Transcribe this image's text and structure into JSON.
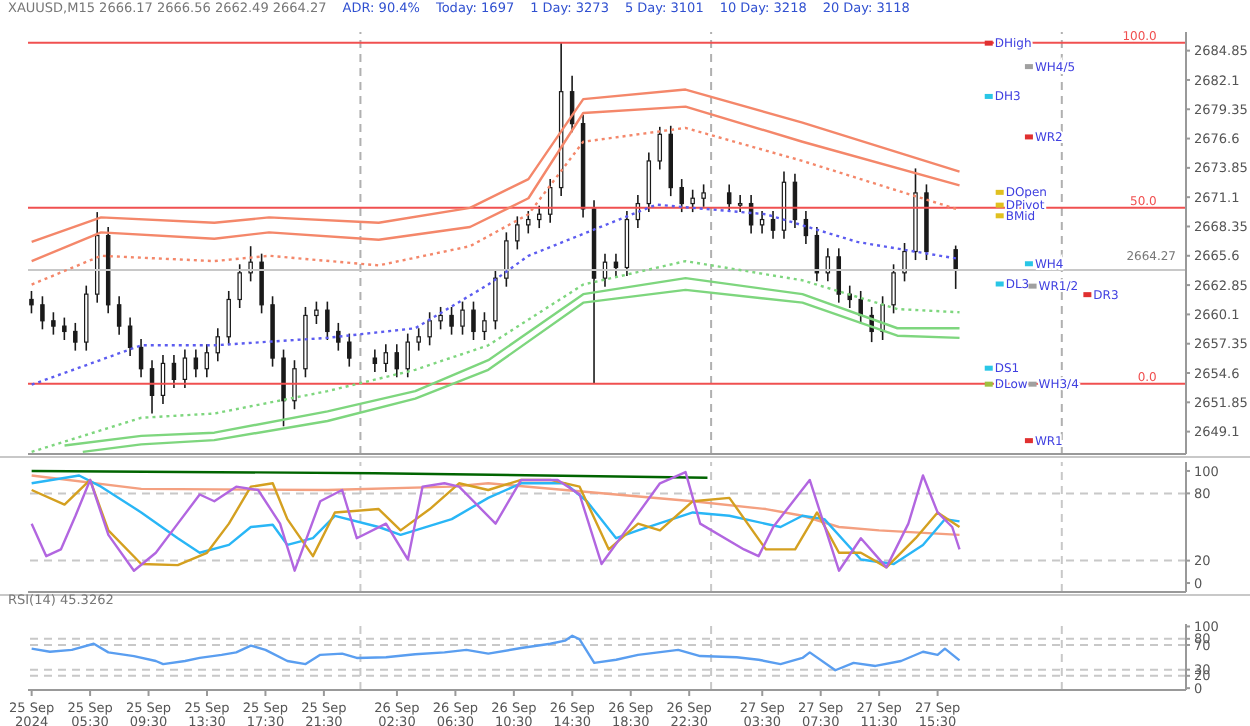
{
  "chart_data": [
    {
      "type": "candlestick",
      "title": "XAUUSD,M15  2666.17 2666.56 2662.49 2664.27",
      "color": "#1a1a1a",
      "annotations": [
        "ADR: 90.4%",
        "Today: 1697",
        "1 Day: 3273",
        "5 Day: 3101",
        "10 Day: 3218",
        "20 Day: 3118",
        {
          "text": "100.0",
          "x": "2024-09-28T06:30",
          "y": 2685.6
        },
        {
          "text": "50.0",
          "x": "2024-09-28T06:30",
          "y": 2670.1
        },
        {
          "text": "0.0",
          "x": "2024-09-28T06:30",
          "y": 2653.6
        }
      ],
      "x": [
        "2024-09-25T01:30",
        "2024-09-25T02:15",
        "2024-09-25T03:00",
        "2024-09-25T03:45",
        "2024-09-25T04:30",
        "2024-09-25T05:15",
        "2024-09-25T06:00",
        "2024-09-25T06:45",
        "2024-09-25T07:30",
        "2024-09-25T08:15",
        "2024-09-25T09:00",
        "2024-09-25T09:45",
        "2024-09-25T10:30",
        "2024-09-25T11:15",
        "2024-09-25T12:00",
        "2024-09-25T12:45",
        "2024-09-25T13:30",
        "2024-09-25T14:15",
        "2024-09-25T15:00",
        "2024-09-25T15:45",
        "2024-09-25T16:30",
        "2024-09-25T17:15",
        "2024-09-25T18:00",
        "2024-09-25T18:45",
        "2024-09-25T19:30",
        "2024-09-25T20:15",
        "2024-09-25T21:00",
        "2024-09-25T21:45",
        "2024-09-25T22:30",
        "2024-09-25T23:15",
        "2024-09-26T01:00",
        "2024-09-26T01:45",
        "2024-09-26T02:30",
        "2024-09-26T03:15",
        "2024-09-26T04:00",
        "2024-09-26T04:45",
        "2024-09-26T05:30",
        "2024-09-26T06:15",
        "2024-09-26T07:00",
        "2024-09-26T07:45",
        "2024-09-26T08:30",
        "2024-09-26T09:15",
        "2024-09-26T10:00",
        "2024-09-26T10:45",
        "2024-09-26T11:30",
        "2024-09-26T12:15",
        "2024-09-26T13:00",
        "2024-09-26T13:45",
        "2024-09-26T14:30",
        "2024-09-26T15:15",
        "2024-09-26T16:00",
        "2024-09-26T16:45",
        "2024-09-26T17:30",
        "2024-09-26T18:15",
        "2024-09-26T19:00",
        "2024-09-26T19:45",
        "2024-09-26T20:30",
        "2024-09-26T21:15",
        "2024-09-26T22:00",
        "2024-09-26T22:45",
        "2024-09-26T23:30",
        "2024-09-27T01:15",
        "2024-09-27T02:00",
        "2024-09-27T02:45",
        "2024-09-27T03:30",
        "2024-09-27T04:15",
        "2024-09-27T05:00",
        "2024-09-27T05:45",
        "2024-09-27T06:30",
        "2024-09-27T07:15",
        "2024-09-27T08:00",
        "2024-09-27T08:45",
        "2024-09-27T09:30",
        "2024-09-27T10:15",
        "2024-09-27T11:00",
        "2024-09-27T11:45",
        "2024-09-27T12:30",
        "2024-09-27T13:15",
        "2024-09-27T14:00",
        "2024-09-27T14:45",
        "2024-09-27T16:45"
      ],
      "ohlc": [
        [
          2661.5,
          2662.3,
          2660.2,
          2661.0
        ],
        [
          2661.0,
          2661.8,
          2658.7,
          2659.5
        ],
        [
          2659.5,
          2660.3,
          2658.2,
          2659.0
        ],
        [
          2659.0,
          2659.8,
          2657.7,
          2658.5
        ],
        [
          2658.5,
          2659.3,
          2656.7,
          2657.5
        ],
        [
          2657.5,
          2662.8,
          2656.7,
          2662.0
        ],
        [
          2662.0,
          2669.7,
          2661.2,
          2667.5
        ],
        [
          2667.5,
          2668.3,
          2660.2,
          2661.0
        ],
        [
          2661.0,
          2661.8,
          2658.2,
          2659.0
        ],
        [
          2659.0,
          2659.8,
          2656.2,
          2657.0
        ],
        [
          2657.0,
          2657.8,
          2654.2,
          2655.0
        ],
        [
          2655.0,
          2655.8,
          2650.8,
          2652.5
        ],
        [
          2652.5,
          2656.3,
          2651.7,
          2655.5
        ],
        [
          2655.5,
          2656.3,
          2653.2,
          2654.0
        ],
        [
          2654.0,
          2656.8,
          2653.2,
          2656.0
        ],
        [
          2656.0,
          2656.8,
          2654.2,
          2655.0
        ],
        [
          2655.0,
          2657.3,
          2654.2,
          2656.5
        ],
        [
          2656.5,
          2658.8,
          2655.7,
          2658.0
        ],
        [
          2658.0,
          2662.3,
          2657.2,
          2661.5
        ],
        [
          2661.5,
          2664.8,
          2660.7,
          2664.0
        ],
        [
          2664.0,
          2666.5,
          2663.2,
          2665.0
        ],
        [
          2665.0,
          2665.8,
          2660.2,
          2661.0
        ],
        [
          2661.0,
          2661.8,
          2655.2,
          2656.0
        ],
        [
          2656.0,
          2656.8,
          2649.6,
          2652.0
        ],
        [
          2652.0,
          2655.8,
          2651.2,
          2655.0
        ],
        [
          2655.0,
          2660.8,
          2654.2,
          2660.0
        ],
        [
          2660.0,
          2661.3,
          2659.2,
          2660.5
        ],
        [
          2660.5,
          2661.3,
          2657.7,
          2658.5
        ],
        [
          2658.5,
          2659.3,
          2656.7,
          2657.5
        ],
        [
          2657.5,
          2658.3,
          2655.2,
          2656.0
        ],
        [
          2656.0,
          2656.8,
          2654.7,
          2655.5
        ],
        [
          2655.5,
          2657.3,
          2654.7,
          2656.5
        ],
        [
          2656.5,
          2657.3,
          2654.2,
          2655.0
        ],
        [
          2655.0,
          2658.3,
          2654.2,
          2657.5
        ],
        [
          2657.5,
          2658.8,
          2656.7,
          2658.0
        ],
        [
          2658.0,
          2660.3,
          2657.2,
          2659.5
        ],
        [
          2659.5,
          2660.8,
          2658.7,
          2660.0
        ],
        [
          2660.0,
          2660.8,
          2658.2,
          2659.0
        ],
        [
          2659.0,
          2661.3,
          2658.2,
          2660.5
        ],
        [
          2660.5,
          2661.3,
          2657.7,
          2658.5
        ],
        [
          2658.5,
          2660.3,
          2657.7,
          2659.5
        ],
        [
          2659.5,
          2664.3,
          2658.7,
          2663.5
        ],
        [
          2663.5,
          2667.8,
          2662.7,
          2667.0
        ],
        [
          2667.0,
          2669.3,
          2666.2,
          2668.5
        ],
        [
          2668.5,
          2669.8,
          2667.7,
          2669.0
        ],
        [
          2669.0,
          2670.3,
          2668.2,
          2669.5
        ],
        [
          2669.5,
          2672.8,
          2668.7,
          2672.0
        ],
        [
          2672.0,
          2685.6,
          2671.2,
          2681.0
        ],
        [
          2681.0,
          2682.5,
          2677.2,
          2678.0
        ],
        [
          2678.0,
          2678.8,
          2669.2,
          2670.0
        ],
        [
          2670.0,
          2670.8,
          2653.6,
          2663.5
        ],
        [
          2663.5,
          2665.8,
          2662.7,
          2665.0
        ],
        [
          2665.0,
          2665.8,
          2663.7,
          2664.5
        ],
        [
          2664.5,
          2669.8,
          2663.7,
          2669.0
        ],
        [
          2669.0,
          2671.3,
          2668.2,
          2670.5
        ],
        [
          2670.5,
          2675.3,
          2669.7,
          2674.5
        ],
        [
          2674.5,
          2677.7,
          2673.7,
          2677.0
        ],
        [
          2677.0,
          2677.8,
          2671.2,
          2672.0
        ],
        [
          2672.0,
          2672.8,
          2669.7,
          2670.5
        ],
        [
          2670.5,
          2671.8,
          2669.7,
          2671.0
        ],
        [
          2671.0,
          2672.3,
          2670.2,
          2671.5
        ],
        [
          2671.5,
          2672.3,
          2669.7,
          2670.5
        ],
        [
          2670.5,
          2671.3,
          2669.7,
          2670.5
        ],
        [
          2670.5,
          2671.3,
          2667.7,
          2668.5
        ],
        [
          2668.5,
          2669.8,
          2667.7,
          2669.0
        ],
        [
          2669.0,
          2669.8,
          2667.2,
          2668.0
        ],
        [
          2668.0,
          2673.5,
          2667.2,
          2672.5
        ],
        [
          2672.5,
          2673.3,
          2668.2,
          2669.0
        ],
        [
          2669.0,
          2669.8,
          2666.7,
          2667.5
        ],
        [
          2667.5,
          2668.3,
          2663.2,
          2664.0
        ],
        [
          2664.0,
          2666.3,
          2663.2,
          2665.5
        ],
        [
          2665.5,
          2666.3,
          2661.2,
          2662.0
        ],
        [
          2662.0,
          2662.8,
          2660.7,
          2661.5
        ],
        [
          2661.5,
          2662.3,
          2659.2,
          2660.0
        ],
        [
          2660.0,
          2660.8,
          2657.5,
          2658.5
        ],
        [
          2658.5,
          2661.8,
          2657.7,
          2661.0
        ],
        [
          2661.0,
          2664.8,
          2660.2,
          2664.0
        ],
        [
          2664.0,
          2666.8,
          2663.2,
          2666.0
        ],
        [
          2666.0,
          2673.8,
          2665.2,
          2671.5
        ],
        [
          2671.5,
          2672.3,
          2665.2,
          2666.0
        ],
        [
          2666.17,
          2666.56,
          2662.49,
          2664.27
        ]
      ],
      "series": [
        {
          "type": "line",
          "color": "#f4876a",
          "line_style": "solid",
          "x": [
            "2024-09-25T01:30",
            "2024-09-25T06:15",
            "2024-09-25T14:00",
            "2024-09-25T17:45",
            "2024-09-26T01:15",
            "2024-09-26T07:30",
            "2024-09-26T11:30",
            "2024-09-26T15:15",
            "2024-09-26T22:15",
            "2024-09-27T06:15",
            "2024-09-27T17:00"
          ],
          "values": [
            2666.9,
            2669.2,
            2668.7,
            2669.2,
            2668.7,
            2670.1,
            2672.8,
            2680.3,
            2681.2,
            2678.1,
            2673.5
          ]
        },
        {
          "type": "line",
          "color": "#f4876a",
          "line_style": "solid",
          "x": [
            "2024-09-25T01:30",
            "2024-09-25T06:15",
            "2024-09-25T14:00",
            "2024-09-25T17:45",
            "2024-09-26T01:15",
            "2024-09-26T07:30",
            "2024-09-26T11:30",
            "2024-09-26T15:15",
            "2024-09-26T22:15",
            "2024-09-27T06:15",
            "2024-09-27T17:00"
          ],
          "values": [
            2665.1,
            2667.8,
            2667.2,
            2667.8,
            2667.1,
            2668.3,
            2671.0,
            2679.0,
            2679.6,
            2676.3,
            2672.2
          ]
        },
        {
          "type": "line",
          "color": "#f4876a",
          "line_style": "dotted",
          "x": [
            "2024-09-25T01:30",
            "2024-09-25T06:15",
            "2024-09-25T14:00",
            "2024-09-25T17:45",
            "2024-09-26T01:15",
            "2024-09-26T07:30",
            "2024-09-26T11:30",
            "2024-09-26T15:15",
            "2024-09-26T22:15",
            "2024-09-27T06:15",
            "2024-09-27T17:00"
          ],
          "values": [
            2662.9,
            2665.6,
            2665.1,
            2665.6,
            2664.7,
            2666.5,
            2669.5,
            2676.3,
            2677.6,
            2674.5,
            2669.9
          ]
        },
        {
          "type": "line",
          "color": "#5c5cf0",
          "line_style": "dotted",
          "x": [
            "2024-09-25T01:30",
            "2024-09-25T09:00",
            "2024-09-25T14:00",
            "2024-09-25T21:45",
            "2024-09-26T03:45",
            "2024-09-26T08:45",
            "2024-09-26T11:30",
            "2024-09-26T20:15",
            "2024-09-27T03:45",
            "2024-09-27T10:00",
            "2024-09-27T17:00"
          ],
          "values": [
            2653.5,
            2657.2,
            2657.2,
            2657.9,
            2658.8,
            2662.9,
            2665.6,
            2670.4,
            2669.5,
            2666.9,
            2665.3
          ]
        },
        {
          "type": "line",
          "color": "#7ed67e",
          "line_style": "dotted",
          "x": [
            "2024-09-25T01:30",
            "2024-09-25T09:00",
            "2024-09-25T14:00",
            "2024-09-25T21:45",
            "2024-09-26T03:45",
            "2024-09-26T08:45",
            "2024-09-26T15:15",
            "2024-09-26T22:15",
            "2024-09-27T06:15",
            "2024-09-27T12:45",
            "2024-09-27T17:00"
          ],
          "values": [
            2647.2,
            2650.4,
            2650.8,
            2652.9,
            2654.9,
            2657.2,
            2662.9,
            2665.1,
            2663.3,
            2660.6,
            2660.3
          ]
        },
        {
          "type": "line",
          "color": "#7ed67e",
          "line_style": "solid",
          "x": [
            "2024-09-25T03:45",
            "2024-09-25T09:00",
            "2024-09-25T14:00",
            "2024-09-25T21:45",
            "2024-09-26T03:45",
            "2024-09-26T08:45",
            "2024-09-26T15:15",
            "2024-09-26T22:15",
            "2024-09-27T06:15",
            "2024-09-27T12:45",
            "2024-09-27T17:00"
          ],
          "values": [
            2647.8,
            2648.7,
            2649.0,
            2651.0,
            2652.9,
            2655.8,
            2662.0,
            2663.5,
            2662.0,
            2658.8,
            2658.8
          ]
        },
        {
          "type": "line",
          "color": "#7ed67e",
          "line_style": "solid",
          "x": [
            "2024-09-25T05:00",
            "2024-09-25T09:00",
            "2024-09-25T14:00",
            "2024-09-25T21:45",
            "2024-09-26T03:45",
            "2024-09-26T08:45",
            "2024-09-26T15:15",
            "2024-09-26T22:15",
            "2024-09-27T06:15",
            "2024-09-27T12:45",
            "2024-09-27T17:00"
          ],
          "values": [
            2647.2,
            2647.9,
            2648.3,
            2650.1,
            2652.2,
            2654.9,
            2661.2,
            2662.4,
            2661.2,
            2658.1,
            2657.9
          ]
        },
        {
          "type": "scatter",
          "marker": "square",
          "name": "DHigh",
          "color": "#e03030",
          "x": [
            "2024-09-27T19:00"
          ],
          "values": [
            2685.6
          ]
        },
        {
          "type": "scatter",
          "marker": "square",
          "name": "WH4/5",
          "color": "#a0a0a0",
          "x": [
            "2024-09-27T21:45"
          ],
          "values": [
            2683.4
          ]
        },
        {
          "type": "scatter",
          "marker": "square",
          "name": "DH3",
          "color": "#29c6e6",
          "x": [
            "2024-09-27T19:00"
          ],
          "values": [
            2680.6
          ]
        },
        {
          "type": "scatter",
          "marker": "square",
          "name": "WR2",
          "color": "#e03030",
          "x": [
            "2024-09-27T21:45"
          ],
          "values": [
            2676.8
          ]
        },
        {
          "type": "scatter",
          "marker": "square",
          "name": "DOpen",
          "color": "#e0c020",
          "x": [
            "2024-09-27T19:45"
          ],
          "values": [
            2671.6
          ]
        },
        {
          "type": "scatter",
          "marker": "square",
          "name": "DPivot",
          "color": "#e0c020",
          "x": [
            "2024-09-27T19:45"
          ],
          "values": [
            2670.4
          ]
        },
        {
          "type": "scatter",
          "marker": "square",
          "name": "BMid",
          "color": "#e0c020",
          "x": [
            "2024-09-27T19:45"
          ],
          "values": [
            2669.4
          ]
        },
        {
          "type": "scatter",
          "marker": "square",
          "name": "WH4",
          "color": "#29c6e6",
          "x": [
            "2024-09-27T21:45"
          ],
          "values": [
            2664.9
          ]
        },
        {
          "type": "scatter",
          "marker": "square",
          "name": "DL3",
          "color": "#29c6e6",
          "x": [
            "2024-09-27T19:45"
          ],
          "values": [
            2663.0
          ]
        },
        {
          "type": "scatter",
          "marker": "square",
          "name": "WR1/2",
          "color": "#a0a0a0",
          "x": [
            "2024-09-27T22:00"
          ],
          "values": [
            2662.8
          ]
        },
        {
          "type": "scatter",
          "marker": "square",
          "name": "DR3",
          "color": "#e03030",
          "x": [
            "2024-09-28T01:45"
          ],
          "values": [
            2662.0
          ]
        },
        {
          "type": "scatter",
          "marker": "square",
          "name": "DS1",
          "color": "#29c6e6",
          "x": [
            "2024-09-27T19:00"
          ],
          "values": [
            2655.1
          ]
        },
        {
          "type": "scatter",
          "marker": "square",
          "name": "DLow",
          "color": "#a0c040",
          "x": [
            "2024-09-27T19:00"
          ],
          "values": [
            2653.6
          ]
        },
        {
          "type": "scatter",
          "marker": "square",
          "name": "WH3/4",
          "color": "#a0a0a0",
          "x": [
            "2024-09-27T22:00"
          ],
          "values": [
            2653.6
          ]
        },
        {
          "type": "scatter",
          "marker": "square",
          "name": "WR1",
          "color": "#e03030",
          "x": [
            "2024-09-27T21:45"
          ],
          "values": [
            2648.3
          ]
        }
      ],
      "xlim": [
        "2024-09-25T01:15",
        "2024-09-28T08:30"
      ],
      "ylim": [
        2647.0,
        2686.6
      ],
      "yticks": [
        2649.1,
        2651.85,
        2654.6,
        2657.35,
        2660.1,
        2662.85,
        2665.6,
        2668.35,
        2671.1,
        2673.85,
        2676.6,
        2679.35,
        2682.1,
        2684.85
      ],
      "ref_lines": [
        {
          "axis": "x",
          "value": "2024-09-26T00:00",
          "color": "#b0b0b0",
          "line_style": "dashed"
        },
        {
          "axis": "x",
          "value": "2024-09-27T00:00",
          "color": "#b0b0b0",
          "line_style": "dashed"
        },
        {
          "axis": "x",
          "value": "2024-09-28T00:00",
          "color": "#b0b0b0",
          "line_style": "dashed"
        },
        {
          "axis": "y",
          "value": 2685.6,
          "color": "#f05050",
          "line_style": "solid"
        },
        {
          "axis": "y",
          "value": 2670.1,
          "color": "#f05050",
          "line_style": "solid"
        },
        {
          "axis": "y",
          "value": 2653.6,
          "color": "#f05050",
          "line_style": "solid"
        },
        {
          "axis": "y",
          "value": 2664.27,
          "label": "2664.27",
          "color": "#c8c8c8",
          "line_style": "solid"
        }
      ],
      "tick_labels": "y"
    },
    {
      "type": "line",
      "series": [
        {
          "color": "#006400",
          "x": [
            "2024-09-25T01:30",
            "2024-09-26T01:00",
            "2024-09-26T23:45"
          ],
          "values": [
            100,
            98,
            94
          ]
        },
        {
          "color": "#f4a080",
          "x": [
            "2024-09-25T01:30",
            "2024-09-25T09:00",
            "2024-09-25T21:45",
            "2024-09-26T06:15",
            "2024-09-26T08:45",
            "2024-09-26T14:00",
            "2024-09-26T22:45",
            "2024-09-27T03:45",
            "2024-09-27T06:15",
            "2024-09-27T08:45",
            "2024-09-27T11:30",
            "2024-09-27T17:00"
          ],
          "values": [
            96,
            84,
            83,
            86,
            89,
            83,
            73,
            66,
            60,
            50,
            47,
            43
          ]
        },
        {
          "color": "#29b6f6",
          "x": [
            "2024-09-25T01:30",
            "2024-09-25T04:45",
            "2024-09-25T06:15",
            "2024-09-25T09:00",
            "2024-09-25T11:30",
            "2024-09-25T13:00",
            "2024-09-25T15:00",
            "2024-09-25T16:30",
            "2024-09-25T18:00",
            "2024-09-25T19:00",
            "2024-09-25T20:45",
            "2024-09-25T22:15",
            "2024-09-26T01:15",
            "2024-09-26T02:45",
            "2024-09-26T06:15",
            "2024-09-26T08:45",
            "2024-09-26T11:00",
            "2024-09-26T14:00",
            "2024-09-26T15:30",
            "2024-09-26T17:30",
            "2024-09-26T19:00",
            "2024-09-26T22:45",
            "2024-09-27T01:15",
            "2024-09-27T04:45",
            "2024-09-27T06:15",
            "2024-09-27T07:45",
            "2024-09-27T10:15",
            "2024-09-27T12:30",
            "2024-09-27T14:30",
            "2024-09-27T16:00",
            "2024-09-27T17:00"
          ],
          "values": [
            89,
            96,
            86,
            63,
            40,
            27,
            34,
            50,
            52,
            34,
            40,
            60,
            50,
            43,
            57,
            76,
            89,
            89,
            73,
            40,
            47,
            63,
            60,
            50,
            60,
            57,
            21,
            17,
            34,
            57,
            55
          ]
        },
        {
          "color": "#d4a020",
          "x": [
            "2024-09-25T01:30",
            "2024-09-25T03:45",
            "2024-09-25T05:30",
            "2024-09-25T06:45",
            "2024-09-25T09:00",
            "2024-09-25T11:30",
            "2024-09-25T13:30",
            "2024-09-25T15:00",
            "2024-09-25T16:30",
            "2024-09-25T18:00",
            "2024-09-25T19:00",
            "2024-09-25T20:45",
            "2024-09-25T22:15",
            "2024-09-26T01:15",
            "2024-09-26T02:45",
            "2024-09-26T04:45",
            "2024-09-26T06:45",
            "2024-09-26T08:45",
            "2024-09-26T11:00",
            "2024-09-26T13:00",
            "2024-09-26T15:00",
            "2024-09-26T17:00",
            "2024-09-26T19:00",
            "2024-09-26T20:30",
            "2024-09-26T22:45",
            "2024-09-27T01:15",
            "2024-09-27T03:45",
            "2024-09-27T05:45",
            "2024-09-27T07:15",
            "2024-09-27T08:45",
            "2024-09-27T10:15",
            "2024-09-27T12:00",
            "2024-09-27T14:00",
            "2024-09-27T15:30",
            "2024-09-27T17:00"
          ],
          "values": [
            83,
            70,
            92,
            47,
            17,
            16,
            27,
            53,
            86,
            89,
            57,
            24,
            63,
            66,
            47,
            66,
            89,
            83,
            92,
            92,
            86,
            30,
            53,
            47,
            73,
            76,
            30,
            30,
            63,
            27,
            27,
            14,
            40,
            63,
            50
          ]
        },
        {
          "color": "#b266e0",
          "x": [
            "2024-09-25T01:30",
            "2024-09-25T02:30",
            "2024-09-25T03:30",
            "2024-09-25T04:30",
            "2024-09-25T05:30",
            "2024-09-25T06:45",
            "2024-09-25T08:30",
            "2024-09-25T10:00",
            "2024-09-25T11:30",
            "2024-09-25T13:00",
            "2024-09-25T14:00",
            "2024-09-25T15:30",
            "2024-09-25T17:00",
            "2024-09-25T18:30",
            "2024-09-25T19:30",
            "2024-09-25T21:15",
            "2024-09-25T22:45",
            "2024-09-25T23:45",
            "2024-09-26T01:45",
            "2024-09-26T03:15",
            "2024-09-26T04:15",
            "2024-09-26T05:45",
            "2024-09-26T06:45",
            "2024-09-26T09:15",
            "2024-09-26T11:00",
            "2024-09-26T13:30",
            "2024-09-26T15:00",
            "2024-09-26T16:30",
            "2024-09-26T18:30",
            "2024-09-26T20:30",
            "2024-09-26T22:15",
            "2024-09-26T23:15",
            "2024-09-27T02:15",
            "2024-09-27T03:15",
            "2024-09-27T04:15",
            "2024-09-27T06:45",
            "2024-09-27T08:45",
            "2024-09-27T10:15",
            "2024-09-27T12:00",
            "2024-09-27T13:30",
            "2024-09-27T14:30",
            "2024-09-27T15:30",
            "2024-09-27T16:30",
            "2024-09-27T17:00"
          ],
          "values": [
            53,
            24,
            30,
            60,
            92,
            43,
            11,
            27,
            53,
            79,
            73,
            86,
            83,
            53,
            11,
            73,
            83,
            40,
            53,
            21,
            86,
            89,
            86,
            53,
            92,
            92,
            79,
            17,
            53,
            89,
            99,
            53,
            30,
            24,
            50,
            92,
            11,
            40,
            14,
            53,
            96,
            63,
            50,
            30
          ]
        }
      ],
      "xlim": [
        "2024-09-25T01:15",
        "2024-09-28T08:30"
      ],
      "ylim": [
        -8,
        108
      ],
      "yticks": [
        0,
        20,
        80,
        100
      ],
      "ref_lines": [
        {
          "axis": "y",
          "value": 20,
          "color": "#c8c8c8",
          "line_style": "dashed"
        },
        {
          "axis": "y",
          "value": 80,
          "color": "#c8c8c8",
          "line_style": "dashed"
        },
        {
          "axis": "x",
          "value": "2024-09-26T00:00",
          "color": "#c8c8c8",
          "line_style": "dashed"
        },
        {
          "axis": "x",
          "value": "2024-09-27T00:00",
          "color": "#c8c8c8",
          "line_style": "dashed"
        },
        {
          "axis": "x",
          "value": "2024-09-28T00:00",
          "color": "#c8c8c8",
          "line_style": "dashed"
        }
      ],
      "tick_labels": "y"
    },
    {
      "type": "line",
      "title": "RSI(14) 45.3262",
      "series": [
        {
          "color": "#5a9ef0",
          "x": [
            "2024-09-25T01:30",
            "2024-09-25T02:45",
            "2024-09-25T04:15",
            "2024-09-25T05:45",
            "2024-09-25T06:45",
            "2024-09-25T08:30",
            "2024-09-25T10:00",
            "2024-09-25T10:30",
            "2024-09-25T12:00",
            "2024-09-25T13:00",
            "2024-09-25T14:30",
            "2024-09-25T15:30",
            "2024-09-25T16:30",
            "2024-09-25T17:30",
            "2024-09-25T19:00",
            "2024-09-25T20:15",
            "2024-09-25T21:15",
            "2024-09-25T22:45",
            "2024-09-25T23:45",
            "2024-09-26T01:45",
            "2024-09-26T03:45",
            "2024-09-26T05:45",
            "2024-09-26T07:15",
            "2024-09-26T08:45",
            "2024-09-26T11:00",
            "2024-09-26T13:00",
            "2024-09-26T14:00",
            "2024-09-26T14:30",
            "2024-09-26T15:00",
            "2024-09-26T16:00",
            "2024-09-26T17:30",
            "2024-09-26T19:00",
            "2024-09-26T21:45",
            "2024-09-26T23:15",
            "2024-09-27T01:45",
            "2024-09-27T03:15",
            "2024-09-27T04:45",
            "2024-09-27T06:15",
            "2024-09-27T06:45",
            "2024-09-27T08:30",
            "2024-09-27T09:45",
            "2024-09-27T11:15",
            "2024-09-27T13:00",
            "2024-09-27T14:30",
            "2024-09-27T15:30",
            "2024-09-27T16:00",
            "2024-09-27T17:00"
          ],
          "values": [
            64,
            59,
            62,
            72,
            58,
            52,
            44,
            39,
            44,
            49,
            54,
            58,
            69,
            62,
            44,
            39,
            54,
            56,
            49,
            50,
            55,
            58,
            62,
            56,
            65,
            72,
            77,
            85,
            79,
            41,
            46,
            54,
            62,
            52,
            50,
            46,
            39,
            49,
            58,
            29,
            41,
            36,
            44,
            59,
            54,
            64,
            45
          ]
        }
      ],
      "xlim": [
        "2024-09-25T01:15",
        "2024-09-28T08:30"
      ],
      "ylim": [
        -3,
        104
      ],
      "yticks": [
        0,
        20,
        30,
        70,
        80,
        100
      ],
      "xticks": [
        {
          "value": "2024-09-25T01:30",
          "label": "25 Sep 2024"
        },
        {
          "value": "2024-09-25T05:30",
          "label": "25 Sep 05:30"
        },
        {
          "value": "2024-09-25T09:30",
          "label": "25 Sep 09:30"
        },
        {
          "value": "2024-09-25T13:30",
          "label": "25 Sep 13:30"
        },
        {
          "value": "2024-09-25T17:30",
          "label": "25 Sep 17:30"
        },
        {
          "value": "2024-09-25T21:30",
          "label": "25 Sep 21:30"
        },
        {
          "value": "2024-09-26T02:30",
          "label": "26 Sep 02:30"
        },
        {
          "value": "2024-09-26T06:30",
          "label": "26 Sep 06:30"
        },
        {
          "value": "2024-09-26T10:30",
          "label": "26 Sep 10:30"
        },
        {
          "value": "2024-09-26T14:30",
          "label": "26 Sep 14:30"
        },
        {
          "value": "2024-09-26T18:30",
          "label": "26 Sep 18:30"
        },
        {
          "value": "2024-09-26T22:30",
          "label": "26 Sep 22:30"
        },
        {
          "value": "2024-09-27T03:30",
          "label": "27 Sep 03:30"
        },
        {
          "value": "2024-09-27T07:30",
          "label": "27 Sep 07:30"
        },
        {
          "value": "2024-09-27T11:30",
          "label": "27 Sep 11:30"
        },
        {
          "value": "2024-09-27T15:30",
          "label": "27 Sep 15:30"
        }
      ],
      "ref_lines": [
        {
          "axis": "y",
          "value": 20,
          "color": "#c8c8c8",
          "line_style": "dashed"
        },
        {
          "axis": "y",
          "value": 30,
          "color": "#c8c8c8",
          "line_style": "dashed"
        },
        {
          "axis": "y",
          "value": 70,
          "color": "#c8c8c8",
          "line_style": "dashed"
        },
        {
          "axis": "y",
          "value": 80,
          "color": "#c8c8c8",
          "line_style": "dashed"
        },
        {
          "axis": "x",
          "value": "2024-09-26T00:00",
          "color": "#c8c8c8",
          "line_style": "dashed"
        },
        {
          "axis": "x",
          "value": "2024-09-27T00:00",
          "color": "#c8c8c8",
          "line_style": "dashed"
        },
        {
          "axis": "x",
          "value": "2024-09-28T00:00",
          "color": "#c8c8c8",
          "line_style": "dashed"
        }
      ]
    }
  ]
}
